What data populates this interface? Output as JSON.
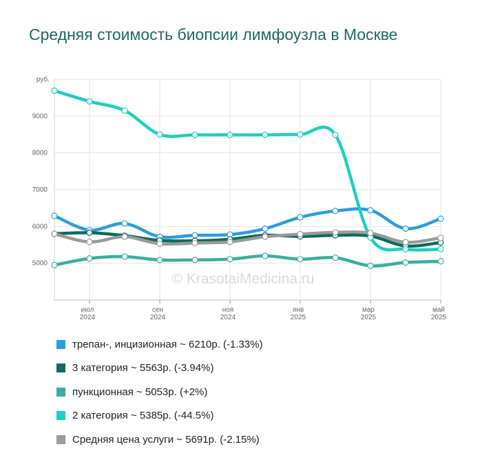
{
  "chart_data": {
    "type": "line",
    "title": "Средняя стоимость биопсии лимфоузла в Москве",
    "ylabel": "руб.",
    "watermark": "© KrasotaiMedicina.ru",
    "ylim": [
      4000,
      10000
    ],
    "yticks": [
      5000,
      6000,
      7000,
      8000,
      9000
    ],
    "grid": true,
    "legend_position": "bottom",
    "x_ticks": [
      {
        "month": "июл",
        "year": "2024"
      },
      {
        "month": "сен",
        "year": "2024"
      },
      {
        "month": "ноя",
        "year": "2024"
      },
      {
        "month": "янв",
        "year": "2025"
      },
      {
        "month": "мар",
        "year": "2025"
      },
      {
        "month": "май",
        "year": "2025"
      }
    ],
    "x": [
      "2024-06-01",
      "2024-07-01",
      "2024-08-01",
      "2024-09-01",
      "2024-10-01",
      "2024-11-01",
      "2024-12-01",
      "2025-01-01",
      "2025-02-01",
      "2025-03-01",
      "2025-04-01",
      "2025-05-01"
    ],
    "series": [
      {
        "name": "трепан-, инцизионная",
        "label": "трепан-, инцизионная ~ 6210р. (-1.33%)",
        "color": "#2b9de0",
        "values": [
          6290,
          5900,
          6080,
          5720,
          5760,
          5780,
          5940,
          6250,
          6420,
          6440,
          5940,
          6210
        ]
      },
      {
        "name": "3 категория",
        "label": "3 категория ~ 5563р. (-3.94%)",
        "color": "#0d6b5f",
        "values": [
          5800,
          5830,
          5750,
          5620,
          5610,
          5650,
          5760,
          5730,
          5760,
          5740,
          5470,
          5563
        ]
      },
      {
        "name": "пункционная",
        "label": "пункционная ~ 5053р. (+2%)",
        "color": "#3aaea0",
        "values": [
          4950,
          5130,
          5180,
          5090,
          5090,
          5110,
          5200,
          5110,
          5150,
          4930,
          5020,
          5053
        ]
      },
      {
        "name": "2 категория",
        "label": "2 категория ~ 5385р. (-44.5%)",
        "color": "#1ccfc0",
        "values": [
          9690,
          9400,
          9150,
          8500,
          8490,
          8490,
          8490,
          8500,
          8490,
          5700,
          5380,
          5385
        ]
      },
      {
        "name": "Средняя цена услуги",
        "label": "Средняя цена услуги ~ 5691р. (-2.15%)",
        "color": "#9a9a9a",
        "values": [
          5800,
          5580,
          5720,
          5530,
          5550,
          5580,
          5720,
          5790,
          5840,
          5820,
          5570,
          5691
        ]
      }
    ]
  }
}
